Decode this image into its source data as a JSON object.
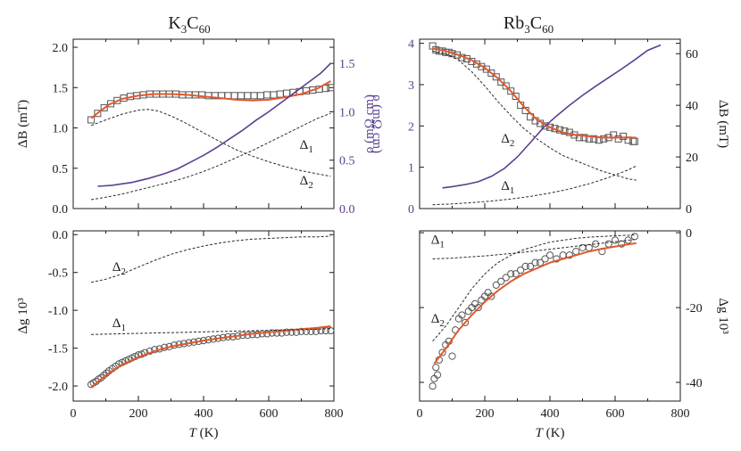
{
  "titles": {
    "left": {
      "base": "K",
      "sub1": "3",
      "mid": "C",
      "sub2": "60"
    },
    "right": {
      "base": "Rb",
      "sub1": "3",
      "mid": "C",
      "sub2": "60"
    }
  },
  "colors": {
    "fit": "#e2592f",
    "rho": "#5b3f8f",
    "dashed": "#2a2a2a",
    "marker": "#555555",
    "axis": "#1a1a1a"
  },
  "chart_data": [
    {
      "id": "k3c60-top",
      "type": "scatter",
      "xlim": [
        0,
        800
      ],
      "ylim": [
        0,
        2.1
      ],
      "y2lim": [
        0,
        1.75
      ],
      "yticks": [
        0.0,
        0.5,
        1.0,
        1.5,
        2.0
      ],
      "ytick_labels": [
        "0.0",
        "0.5",
        "1.0",
        "1.5",
        "2.0"
      ],
      "y2ticks": [
        0.0,
        0.5,
        1.0,
        1.5
      ],
      "y2tick_labels": [
        "0.0",
        "0.5",
        "1.0",
        "1.5"
      ],
      "ylabel": "ΔB (mT)",
      "y2label": "ρ (mΩ cm)",
      "annotations": [
        {
          "text": "Δ",
          "sub": "1",
          "x": 695,
          "y": 0.74
        },
        {
          "text": "Δ",
          "sub": "2",
          "x": 695,
          "y": 0.3
        }
      ],
      "series": [
        {
          "kind": "markers-square",
          "x": [
            55,
            75,
            95,
            115,
            135,
            155,
            175,
            195,
            215,
            235,
            255,
            275,
            295,
            315,
            335,
            355,
            375,
            395,
            415,
            435,
            455,
            475,
            495,
            515,
            535,
            555,
            575,
            595,
            615,
            635,
            655,
            675,
            695,
            715,
            735,
            755,
            775,
            790
          ],
          "y": [
            1.1,
            1.18,
            1.25,
            1.3,
            1.34,
            1.37,
            1.39,
            1.4,
            1.41,
            1.42,
            1.42,
            1.42,
            1.42,
            1.42,
            1.41,
            1.41,
            1.41,
            1.41,
            1.4,
            1.4,
            1.4,
            1.4,
            1.4,
            1.4,
            1.4,
            1.4,
            1.4,
            1.41,
            1.41,
            1.42,
            1.43,
            1.44,
            1.45,
            1.46,
            1.47,
            1.48,
            1.49,
            1.5
          ]
        },
        {
          "kind": "fit",
          "x": [
            55,
            80,
            110,
            150,
            200,
            250,
            300,
            350,
            400,
            450,
            500,
            550,
            600,
            650,
            700,
            750,
            790
          ],
          "y": [
            1.12,
            1.2,
            1.29,
            1.36,
            1.4,
            1.42,
            1.42,
            1.41,
            1.39,
            1.37,
            1.35,
            1.34,
            1.35,
            1.38,
            1.42,
            1.49,
            1.58
          ]
        },
        {
          "kind": "dashed",
          "x": [
            55,
            100,
            150,
            200,
            230,
            260,
            300,
            350,
            400,
            450,
            500,
            550,
            600,
            650,
            700,
            750,
            790
          ],
          "y": [
            1.03,
            1.1,
            1.17,
            1.22,
            1.23,
            1.21,
            1.15,
            1.05,
            0.94,
            0.83,
            0.73,
            0.65,
            0.58,
            0.52,
            0.47,
            0.43,
            0.4
          ]
        },
        {
          "kind": "dashed",
          "x": [
            55,
            100,
            150,
            200,
            250,
            300,
            350,
            400,
            450,
            500,
            550,
            600,
            650,
            700,
            750,
            790
          ],
          "y": [
            0.11,
            0.14,
            0.18,
            0.23,
            0.28,
            0.33,
            0.39,
            0.46,
            0.54,
            0.63,
            0.72,
            0.82,
            0.92,
            1.02,
            1.12,
            1.18
          ]
        },
        {
          "kind": "rho",
          "axis": "y2",
          "x": [
            75,
            120,
            180,
            230,
            280,
            320,
            360,
            400,
            440,
            480,
            520,
            560,
            600,
            640,
            680,
            720,
            760,
            790
          ],
          "y": [
            0.23,
            0.24,
            0.27,
            0.31,
            0.36,
            0.41,
            0.48,
            0.55,
            0.63,
            0.72,
            0.81,
            0.91,
            1.0,
            1.1,
            1.2,
            1.3,
            1.4,
            1.5
          ]
        }
      ]
    },
    {
      "id": "k3c60-bottom",
      "type": "scatter",
      "xlim": [
        0,
        800
      ],
      "ylim": [
        -2.2,
        0.05
      ],
      "yticks": [
        0.0,
        -0.5,
        -1.0,
        -1.5,
        -2.0
      ],
      "ytick_labels": [
        "0.0",
        "-0.5",
        "-1.0",
        "-1.5",
        "-2.0"
      ],
      "xticks": [
        0,
        200,
        400,
        600,
        800
      ],
      "xtick_labels": [
        "0",
        "200",
        "400",
        "600",
        "800"
      ],
      "xlabel": "T (K)",
      "ylabel": "Δg 10³",
      "annotations": [
        {
          "text": "Δ",
          "sub": "2",
          "x": 120,
          "y": -0.48
        },
        {
          "text": "Δ",
          "sub": "1",
          "x": 120,
          "y": -1.22
        }
      ],
      "series": [
        {
          "kind": "markers-circle",
          "x": [
            55,
            62,
            70,
            78,
            86,
            94,
            102,
            110,
            120,
            130,
            140,
            150,
            160,
            170,
            180,
            190,
            200,
            210,
            220,
            235,
            250,
            265,
            280,
            295,
            310,
            325,
            340,
            355,
            370,
            385,
            400,
            415,
            430,
            445,
            460,
            475,
            490,
            505,
            520,
            535,
            550,
            565,
            580,
            595,
            610,
            625,
            640,
            655,
            670,
            685,
            700,
            715,
            730,
            745,
            760,
            775,
            790
          ],
          "y": [
            -1.98,
            -1.96,
            -1.94,
            -1.91,
            -1.89,
            -1.86,
            -1.83,
            -1.8,
            -1.77,
            -1.74,
            -1.71,
            -1.69,
            -1.67,
            -1.65,
            -1.63,
            -1.61,
            -1.59,
            -1.58,
            -1.56,
            -1.54,
            -1.52,
            -1.51,
            -1.49,
            -1.48,
            -1.46,
            -1.45,
            -1.44,
            -1.43,
            -1.42,
            -1.41,
            -1.4,
            -1.39,
            -1.38,
            -1.37,
            -1.36,
            -1.35,
            -1.35,
            -1.34,
            -1.33,
            -1.33,
            -1.32,
            -1.32,
            -1.31,
            -1.31,
            -1.3,
            -1.3,
            -1.3,
            -1.29,
            -1.29,
            -1.29,
            -1.28,
            -1.28,
            -1.28,
            -1.28,
            -1.27,
            -1.27,
            -1.27
          ]
        },
        {
          "kind": "fit",
          "x": [
            55,
            100,
            150,
            200,
            250,
            300,
            350,
            400,
            450,
            500,
            550,
            600,
            650,
            700,
            750,
            790
          ],
          "y": [
            -2.02,
            -1.86,
            -1.72,
            -1.62,
            -1.54,
            -1.48,
            -1.44,
            -1.4,
            -1.37,
            -1.34,
            -1.31,
            -1.29,
            -1.27,
            -1.25,
            -1.23,
            -1.21
          ]
        },
        {
          "kind": "dashed",
          "x": [
            55,
            150,
            250,
            350,
            450,
            550,
            650,
            750,
            790
          ],
          "y": [
            -1.32,
            -1.31,
            -1.3,
            -1.29,
            -1.28,
            -1.27,
            -1.26,
            -1.25,
            -1.24
          ]
        },
        {
          "kind": "dashed",
          "x": [
            55,
            100,
            150,
            200,
            250,
            300,
            350,
            400,
            450,
            500,
            550,
            600,
            650,
            700,
            750,
            790
          ],
          "y": [
            -0.63,
            -0.59,
            -0.52,
            -0.43,
            -0.34,
            -0.26,
            -0.2,
            -0.15,
            -0.11,
            -0.08,
            -0.06,
            -0.05,
            -0.04,
            -0.03,
            -0.03,
            -0.02
          ]
        }
      ]
    },
    {
      "id": "rb3c60-top",
      "type": "scatter",
      "xlim": [
        0,
        800
      ],
      "ylim": [
        0,
        4.1
      ],
      "y2lim": [
        0,
        65.6
      ],
      "yticks": [
        0,
        1,
        2,
        3,
        4
      ],
      "ytick_labels": [
        "0",
        "1",
        "2",
        "3",
        "4"
      ],
      "y2ticks": [
        0,
        20,
        40,
        60
      ],
      "y2tick_labels": [
        "0",
        "20",
        "40",
        "60"
      ],
      "ylabel": "ρ (mΩ cm)",
      "y2label": "ΔB (mT)",
      "annotations": [
        {
          "text": "Δ",
          "sub": "2",
          "x": 250,
          "y": 1.6
        },
        {
          "text": "Δ",
          "sub": "1",
          "x": 250,
          "y": 0.45
        }
      ],
      "series": [
        {
          "kind": "markers-square",
          "axis": "y2",
          "x": [
            40,
            50,
            60,
            70,
            80,
            90,
            100,
            115,
            130,
            145,
            160,
            175,
            190,
            205,
            220,
            235,
            250,
            265,
            280,
            295,
            310,
            325,
            340,
            355,
            370,
            385,
            400,
            415,
            430,
            445,
            460,
            475,
            490,
            505,
            520,
            535,
            550,
            565,
            580,
            595,
            610,
            625,
            640,
            655,
            660
          ],
          "y": [
            63,
            61.5,
            61,
            61,
            60.5,
            60.5,
            60,
            59.5,
            58.5,
            58,
            57,
            56,
            55,
            54,
            52.5,
            51,
            49,
            47.5,
            45.5,
            43.5,
            40,
            38,
            35.5,
            34,
            33,
            32,
            31.5,
            31,
            30.5,
            30,
            29.5,
            28.5,
            27.5,
            27.5,
            27,
            27,
            26.5,
            27,
            27.5,
            28.5,
            27,
            28,
            26.5,
            26,
            26
          ]
        },
        {
          "kind": "fit",
          "axis": "y2",
          "x": [
            40,
            80,
            120,
            160,
            200,
            240,
            280,
            320,
            360,
            400,
            440,
            480,
            520,
            560,
            600,
            640,
            665
          ],
          "y": [
            62,
            61,
            59.5,
            57.5,
            54.5,
            50.5,
            45.5,
            39.5,
            34.5,
            31.5,
            29.5,
            28.5,
            28,
            27.5,
            27.5,
            27.5,
            27.5
          ]
        },
        {
          "kind": "dashed",
          "axis": "y2",
          "x": [
            40,
            80,
            120,
            160,
            200,
            240,
            280,
            320,
            360,
            400,
            440,
            480,
            520,
            560,
            600,
            640,
            665
          ],
          "y": [
            61,
            60,
            57.5,
            53,
            47.5,
            41.5,
            36,
            31,
            27,
            23.5,
            20.5,
            18.5,
            16.5,
            14.5,
            13,
            11.5,
            11
          ]
        },
        {
          "kind": "dashed",
          "axis": "y2",
          "x": [
            40,
            100,
            160,
            220,
            280,
            340,
            400,
            460,
            520,
            580,
            640,
            665
          ],
          "y": [
            1.5,
            1.8,
            2.3,
            2.9,
            3.7,
            4.7,
            6,
            7.6,
            9.6,
            12,
            15,
            16.5
          ]
        },
        {
          "kind": "rho",
          "x": [
            70,
            100,
            140,
            180,
            220,
            260,
            300,
            340,
            380,
            420,
            460,
            500,
            540,
            580,
            620,
            660,
            700,
            740
          ],
          "y": [
            0.5,
            0.53,
            0.58,
            0.65,
            0.78,
            0.97,
            1.25,
            1.6,
            1.96,
            2.24,
            2.5,
            2.74,
            2.96,
            3.17,
            3.38,
            3.6,
            3.83,
            3.96
          ]
        }
      ]
    },
    {
      "id": "rb3c60-bottom",
      "type": "scatter",
      "xlim": [
        0,
        800
      ],
      "ylim": [
        -45,
        0.5
      ],
      "y2ticks": [
        0,
        -20,
        -40
      ],
      "y2tick_labels": [
        "0",
        "-20",
        "-40"
      ],
      "xticks": [
        0,
        200,
        400,
        600,
        800
      ],
      "xtick_labels": [
        "0",
        "200",
        "400",
        "600",
        "800"
      ],
      "xlabel": "T (K)",
      "y2label": "Δg 10³",
      "annotations": [
        {
          "text": "Δ",
          "sub": "1",
          "x": 35,
          "y": -3
        },
        {
          "text": "Δ",
          "sub": "2",
          "x": 35,
          "y": -24
        }
      ],
      "series": [
        {
          "kind": "markers-circle",
          "x": [
            40,
            45,
            50,
            55,
            60,
            70,
            80,
            90,
            100,
            110,
            120,
            130,
            140,
            150,
            160,
            170,
            180,
            190,
            200,
            210,
            220,
            235,
            250,
            265,
            280,
            295,
            310,
            325,
            340,
            355,
            370,
            385,
            400,
            420,
            440,
            460,
            480,
            500,
            520,
            540,
            560,
            580,
            600,
            620,
            640,
            660
          ],
          "y": [
            -41,
            -39,
            -36,
            -38,
            -34,
            -32,
            -30,
            -29,
            -33,
            -26,
            -23,
            -22,
            -24,
            -21,
            -20,
            -19,
            -20,
            -18,
            -17,
            -16,
            -17,
            -14,
            -13,
            -12,
            -11,
            -11,
            -10,
            -9,
            -9,
            -8,
            -8,
            -7,
            -6,
            -7,
            -6,
            -6,
            -5,
            -4,
            -4,
            -3,
            -5,
            -3,
            -2,
            -3,
            -2,
            -1
          ]
        },
        {
          "kind": "fit",
          "x": [
            45,
            80,
            120,
            160,
            200,
            240,
            280,
            320,
            360,
            400,
            440,
            480,
            520,
            560,
            600,
            640,
            665
          ],
          "y": [
            -35,
            -31,
            -26,
            -22,
            -18.5,
            -15.5,
            -13,
            -11,
            -9.5,
            -8,
            -7,
            -6,
            -5,
            -4.3,
            -3.7,
            -3.1,
            -2.8
          ]
        },
        {
          "kind": "dashed",
          "x": [
            40,
            100,
            200,
            300,
            400,
            500,
            600,
            660
          ],
          "y": [
            -7,
            -6.8,
            -6.2,
            -5.4,
            -4.4,
            -3.4,
            -2.4,
            -1.8
          ]
        },
        {
          "kind": "dashed",
          "x": [
            40,
            80,
            120,
            160,
            200,
            240,
            280,
            320,
            360,
            400,
            440,
            480,
            520,
            560,
            600,
            660
          ],
          "y": [
            -29,
            -25,
            -20,
            -15,
            -11,
            -8,
            -6,
            -4.5,
            -3.5,
            -2.5,
            -2,
            -1.5,
            -1.2,
            -1,
            -0.8,
            -0.6
          ]
        }
      ]
    }
  ]
}
